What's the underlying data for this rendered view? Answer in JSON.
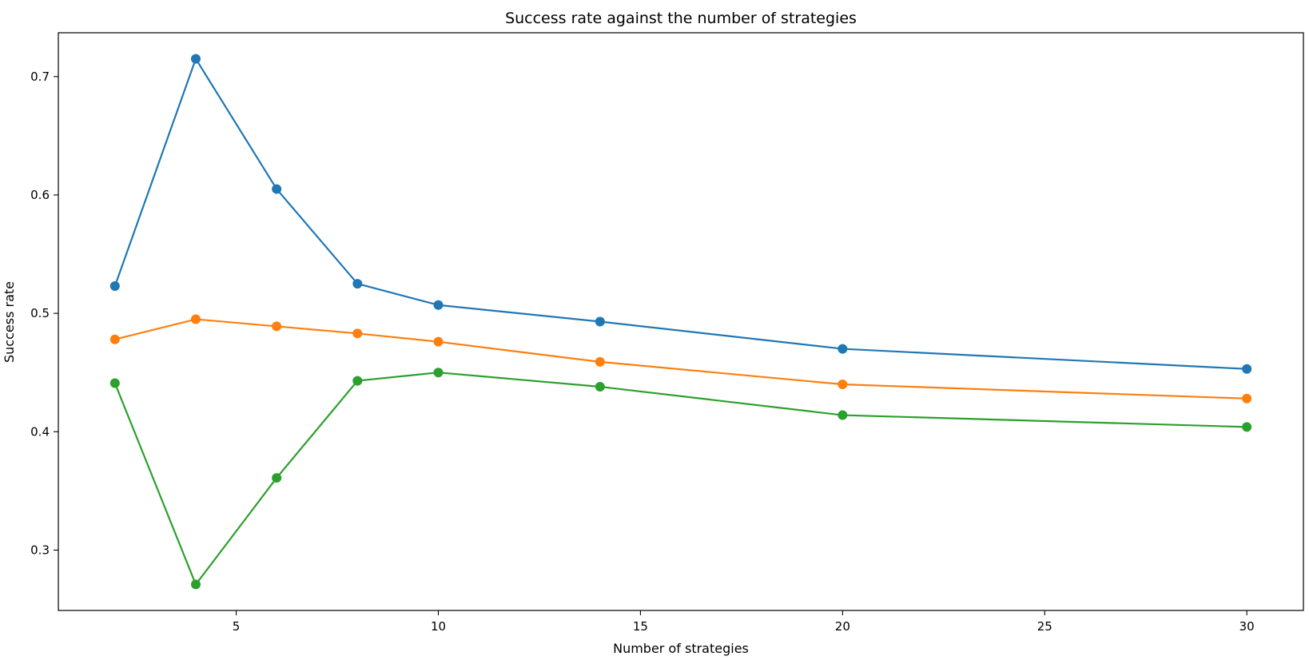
{
  "chart_data": {
    "type": "line",
    "title": "Success rate against the number of strategies",
    "xlabel": "Number of strategies",
    "ylabel": "Success rate",
    "x": [
      2,
      4,
      6,
      8,
      10,
      14,
      20,
      30
    ],
    "series": [
      {
        "color": "#1f77b4",
        "values": [
          0.523,
          0.715,
          0.605,
          0.525,
          0.507,
          0.493,
          0.47,
          0.453
        ]
      },
      {
        "color": "#ff7f0e",
        "values": [
          0.478,
          0.495,
          0.489,
          0.483,
          0.476,
          0.459,
          0.44,
          0.428
        ]
      },
      {
        "color": "#2ca02c",
        "values": [
          0.441,
          0.271,
          0.361,
          0.443,
          0.45,
          0.438,
          0.414,
          0.404
        ]
      }
    ],
    "xticks": [
      5,
      10,
      15,
      20,
      25,
      30
    ],
    "yticks": [
      0.3,
      0.4,
      0.5,
      0.6,
      0.7
    ],
    "xlim": [
      0.6,
      31.4
    ],
    "ylim": [
      0.249,
      0.737
    ],
    "grid": false,
    "legend": "none",
    "markers": true
  }
}
